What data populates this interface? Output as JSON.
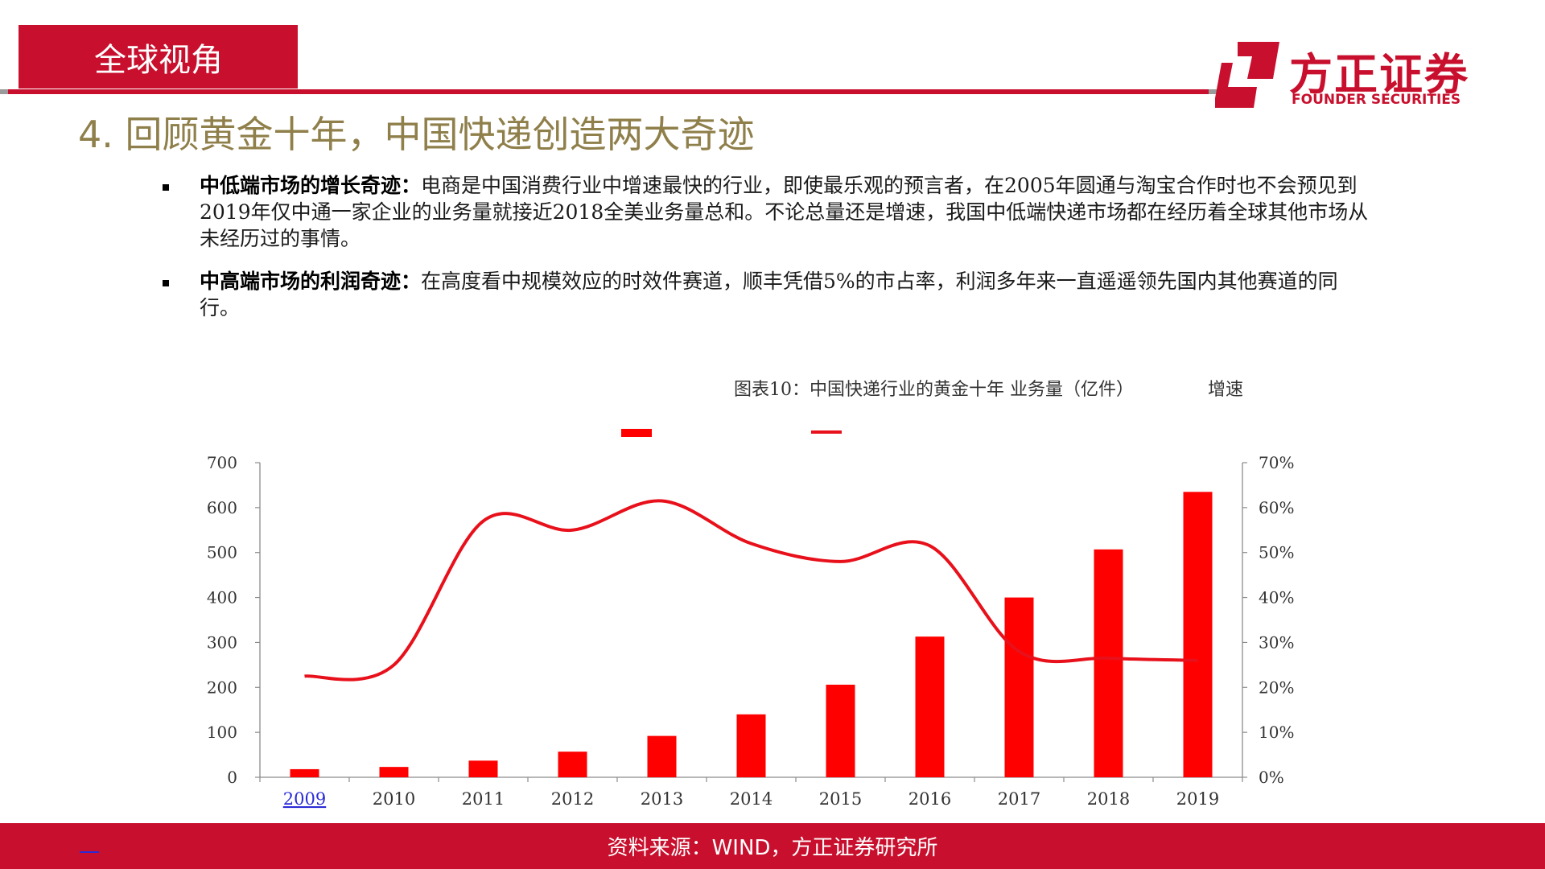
{
  "header": {
    "section_tag": "全球视角",
    "logo_cn": "方正证券",
    "logo_en": "FOUNDER SECURITIES",
    "brand_color": "#c8102e"
  },
  "title": "4. 回顾黄金十年，中国快递创造两大奇迹",
  "bullets": [
    {
      "lead": "中低端市场的增长奇迹：",
      "text": "电商是中国消费行业中增速最快的行业，即使最乐观的预言者，在2005年圆通与淘宝合作时也不会预见到2019年仅中通一家企业的业务量就接近2018全美业务量总和。不论总量还是增速，我国中低端快递市场都在经历着全球其他市场从未经历过的事情。"
    },
    {
      "lead": "中高端市场的利润奇迹：",
      "text": "在高度看中规模效应的时效件赛道，顺丰凭借5%的市占率，利润多年来一直遥遥领先国内其他赛道的同行。"
    }
  ],
  "chart_data": {
    "type": "bar",
    "title": "图表10：中国快递行业的黄金十年",
    "categories": [
      "2009",
      "2010",
      "2011",
      "2012",
      "2013",
      "2014",
      "2015",
      "2016",
      "2017",
      "2018",
      "2019"
    ],
    "series": [
      {
        "name": "业务量（亿件）",
        "type": "bar",
        "axis": "left",
        "color": "#ff0000",
        "values": [
          18,
          23,
          37,
          57,
          92,
          140,
          206,
          313,
          400,
          507,
          635
        ]
      },
      {
        "name": "增速",
        "type": "line",
        "axis": "right",
        "color": "#e8101a",
        "values": [
          22.5,
          25,
          57,
          55,
          61.5,
          52,
          48,
          51.5,
          28,
          26.5,
          26
        ]
      }
    ],
    "left_axis": {
      "ylim": [
        0,
        700
      ],
      "ticks": [
        "0",
        "100",
        "200",
        "300",
        "400",
        "500",
        "600",
        "700"
      ]
    },
    "right_axis": {
      "ylim": [
        0,
        70
      ],
      "ticks": [
        "0%",
        "10%",
        "20%",
        "30%",
        "40%",
        "50%",
        "60%",
        "70%"
      ]
    },
    "grid": false,
    "legend_position": "top-center"
  },
  "footer": {
    "source": "资料来源：WIND，方正证券研究所"
  }
}
